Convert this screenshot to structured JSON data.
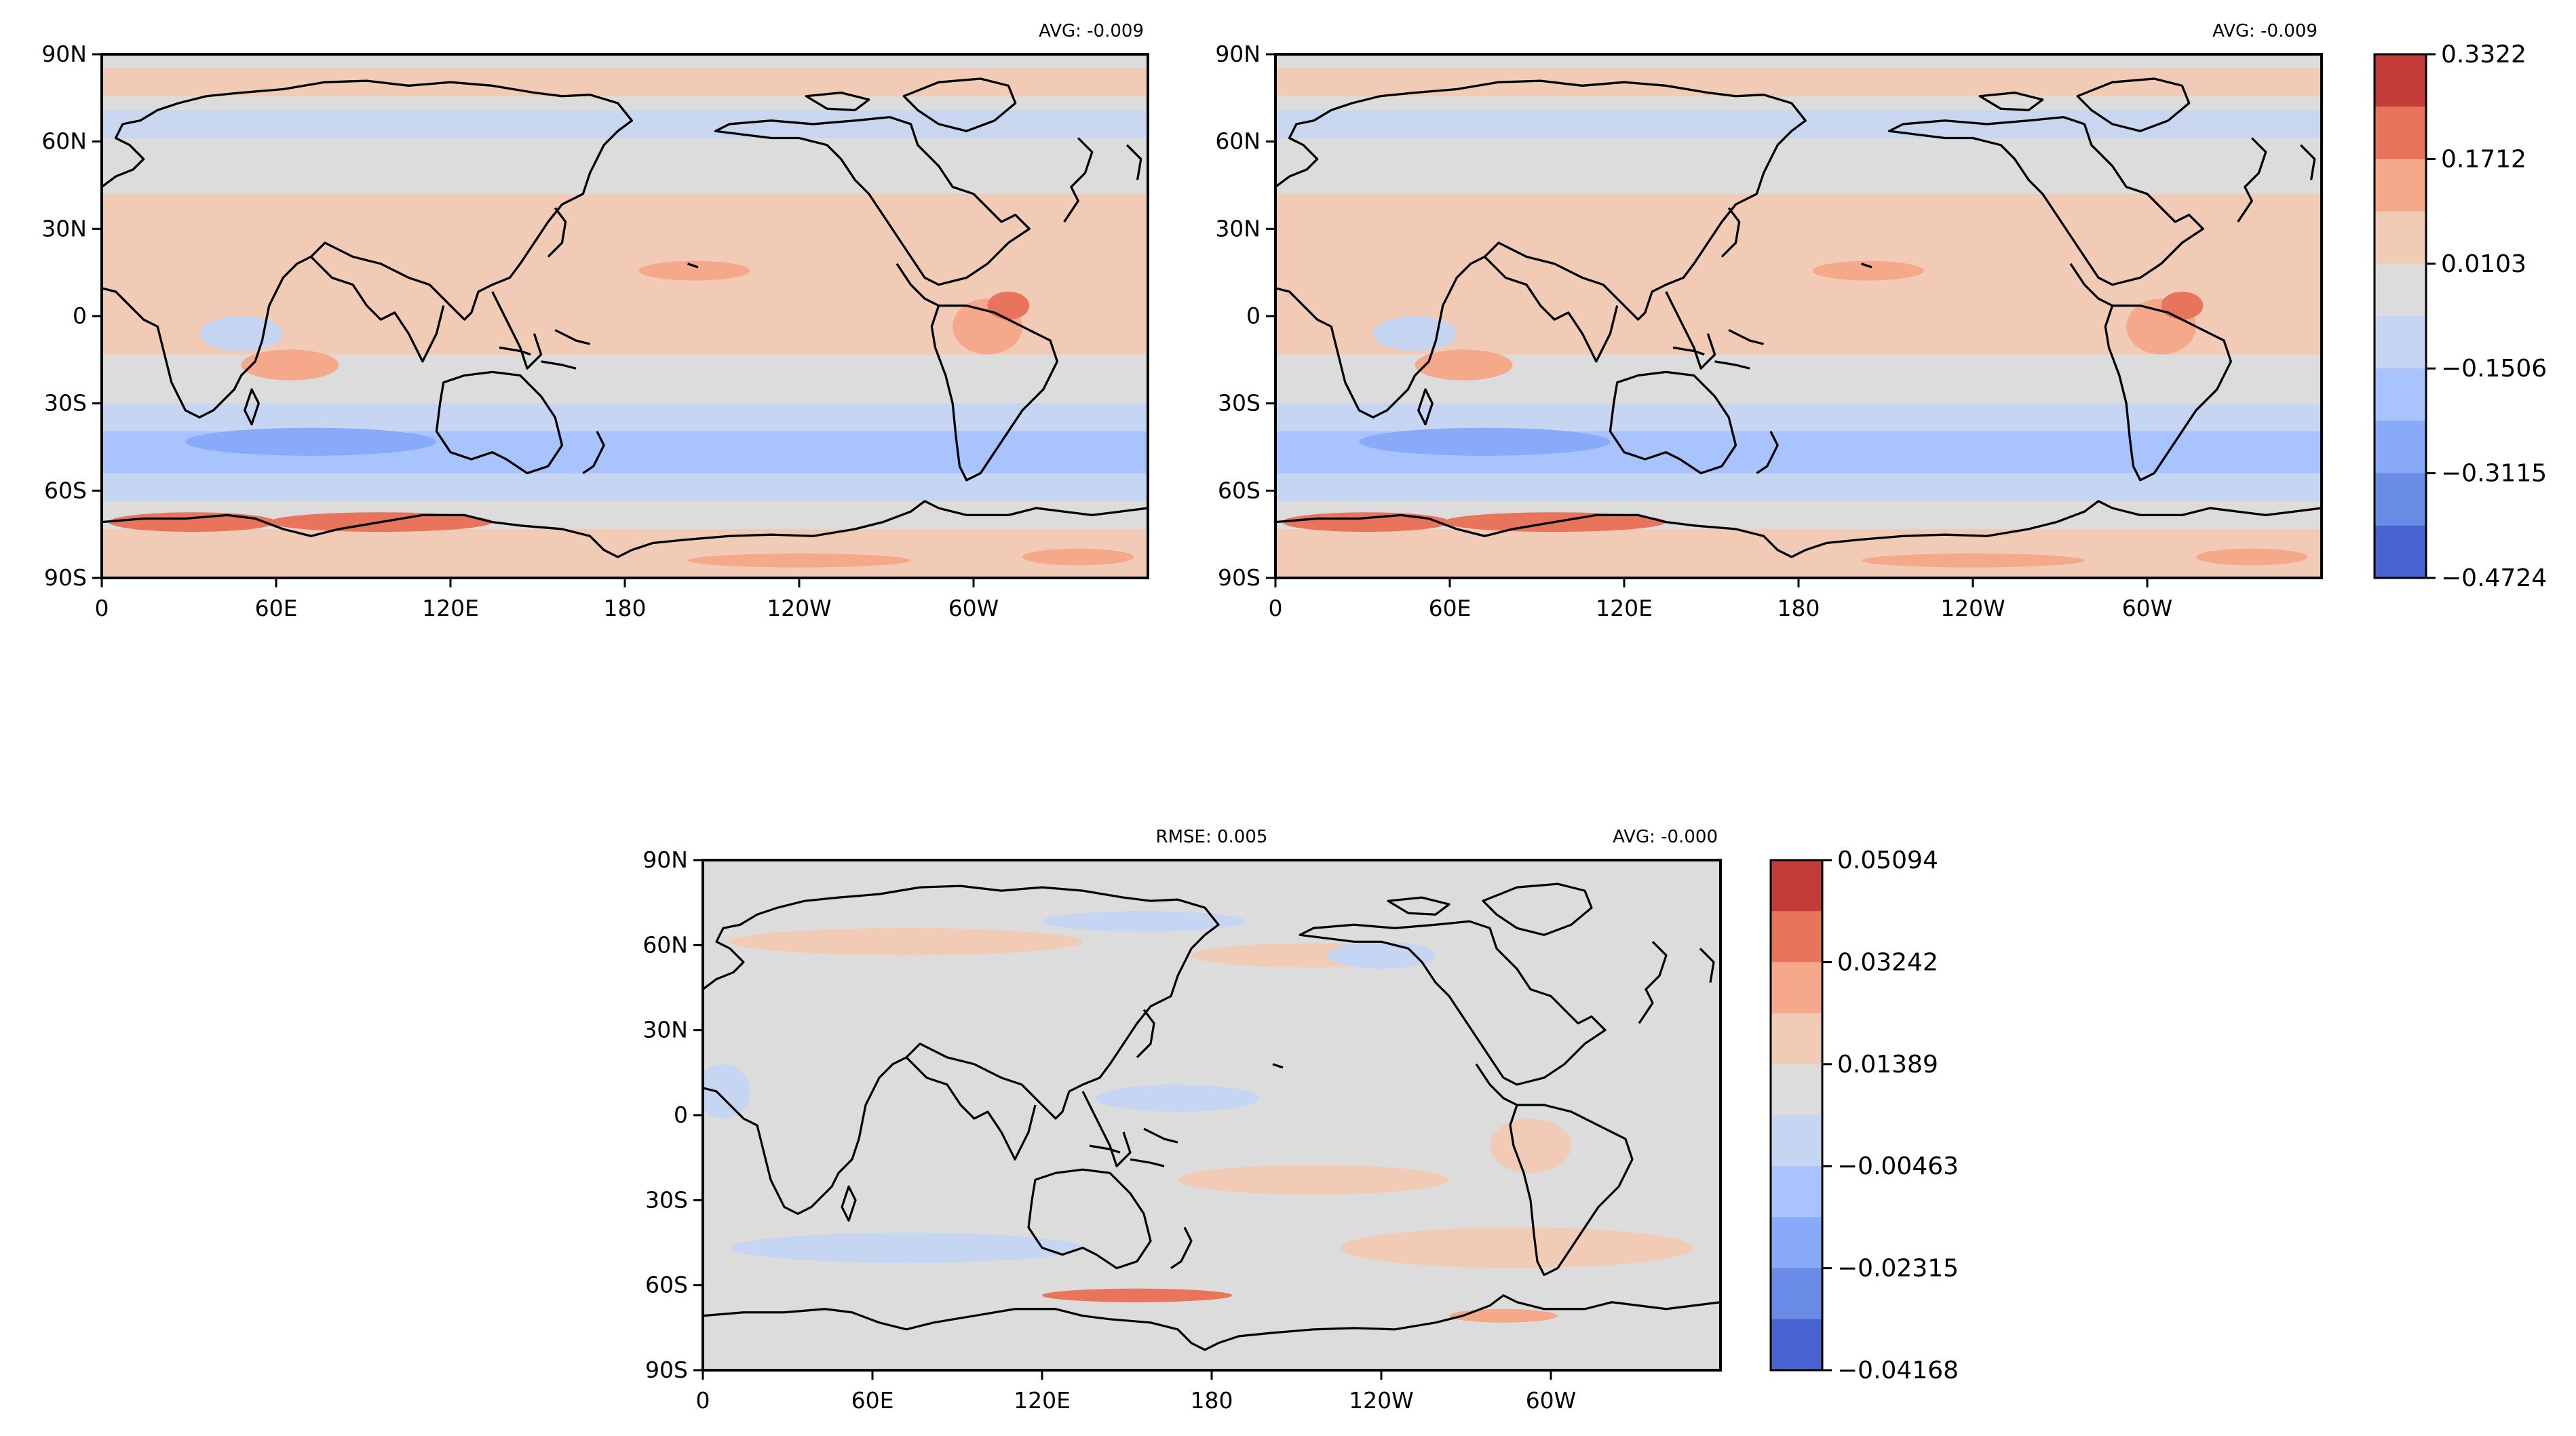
{
  "figure": {
    "panels": [
      {
        "id": "top-left",
        "top_left_text": "",
        "top_right_text": "AVG: -0.009"
      },
      {
        "id": "top-right",
        "top_left_text": "",
        "top_right_text": "AVG: -0.009"
      },
      {
        "id": "bottom-diff",
        "top_left_text": "RMSE: 0.005",
        "top_right_text": "AVG: -0.000"
      }
    ],
    "x_ticks": [
      "0",
      "60E",
      "120E",
      "180",
      "120W",
      "60W"
    ],
    "y_ticks": [
      "90N",
      "60N",
      "30N",
      "0",
      "30S",
      "60S",
      "90S"
    ],
    "colorbars": [
      {
        "id": "colorbar-top",
        "labels": [
          "0.3322",
          "0.1712",
          "0.0103",
          "−0.1506",
          "−0.3115",
          "−0.4724"
        ],
        "colors": [
          "#c43c39",
          "#e7745b",
          "#f5a98a",
          "#f2cbb7",
          "#dddcdc",
          "#c5d5f2",
          "#a8c3fd",
          "#88aaf8",
          "#6a8be6",
          "#4a63d3"
        ]
      },
      {
        "id": "colorbar-bottom",
        "labels": [
          "0.05094",
          "0.03242",
          "0.01389",
          "−0.00463",
          "−0.02315",
          "−0.04168"
        ],
        "colors": [
          "#c43c39",
          "#e7745b",
          "#f5a98a",
          "#f2cbb7",
          "#dddcdc",
          "#c5d5f2",
          "#a8c3fd",
          "#88aaf8",
          "#6a8be6",
          "#4a63d3"
        ]
      }
    ]
  }
}
